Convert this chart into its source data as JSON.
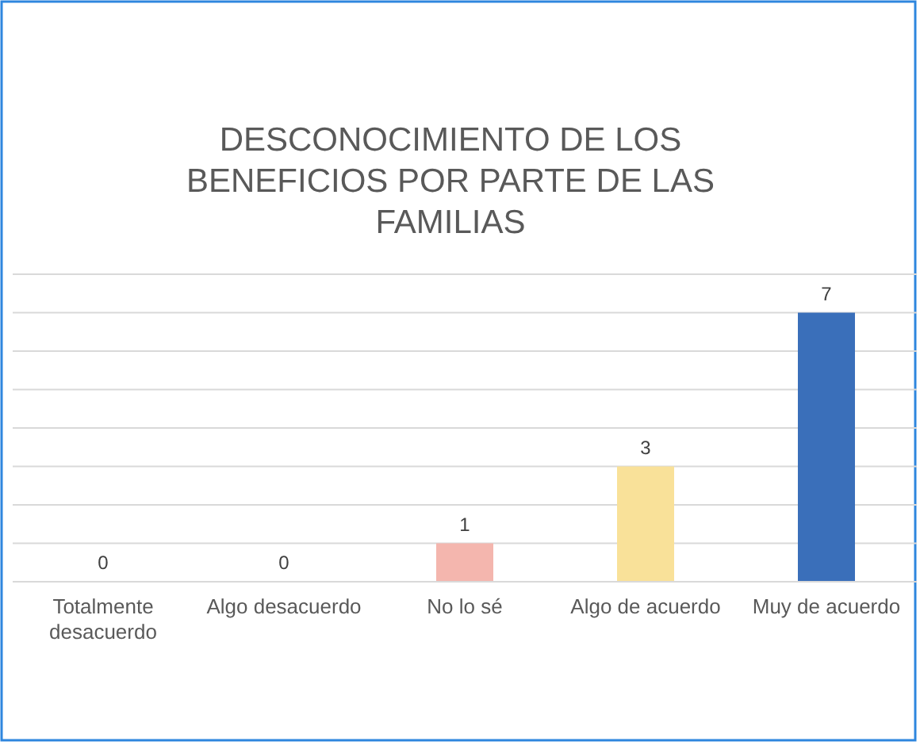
{
  "chart_data": {
    "type": "bar",
    "title": "DESCONOCIMIENTO DE LOS BENEFICIOS POR PARTE DE LAS FAMILIAS",
    "categories": [
      "Totalmente desacuerdo",
      "Algo desacuerdo",
      "No lo sé",
      "Algo de acuerdo",
      "Muy de acuerdo"
    ],
    "values": [
      0,
      0,
      1,
      3,
      7
    ],
    "colors": [
      "#a5a5a5",
      "#ed7d31",
      "#f4b6ae",
      "#f9e199",
      "#3a6fba"
    ],
    "ylim": [
      0,
      8
    ],
    "yticks": [
      {
        "value": 0,
        "label": null
      },
      {
        "value": 1,
        "label": null
      },
      {
        "value": 2,
        "label": null
      },
      {
        "value": 3,
        "label": null
      },
      {
        "value": 4,
        "label": null
      },
      {
        "value": 5,
        "label": null
      },
      {
        "value": 6,
        "label": null
      },
      {
        "value": 7,
        "label": null
      },
      {
        "value": 8,
        "label": null
      }
    ],
    "grid": "y",
    "tick_labels": "x",
    "data_labels": true
  }
}
